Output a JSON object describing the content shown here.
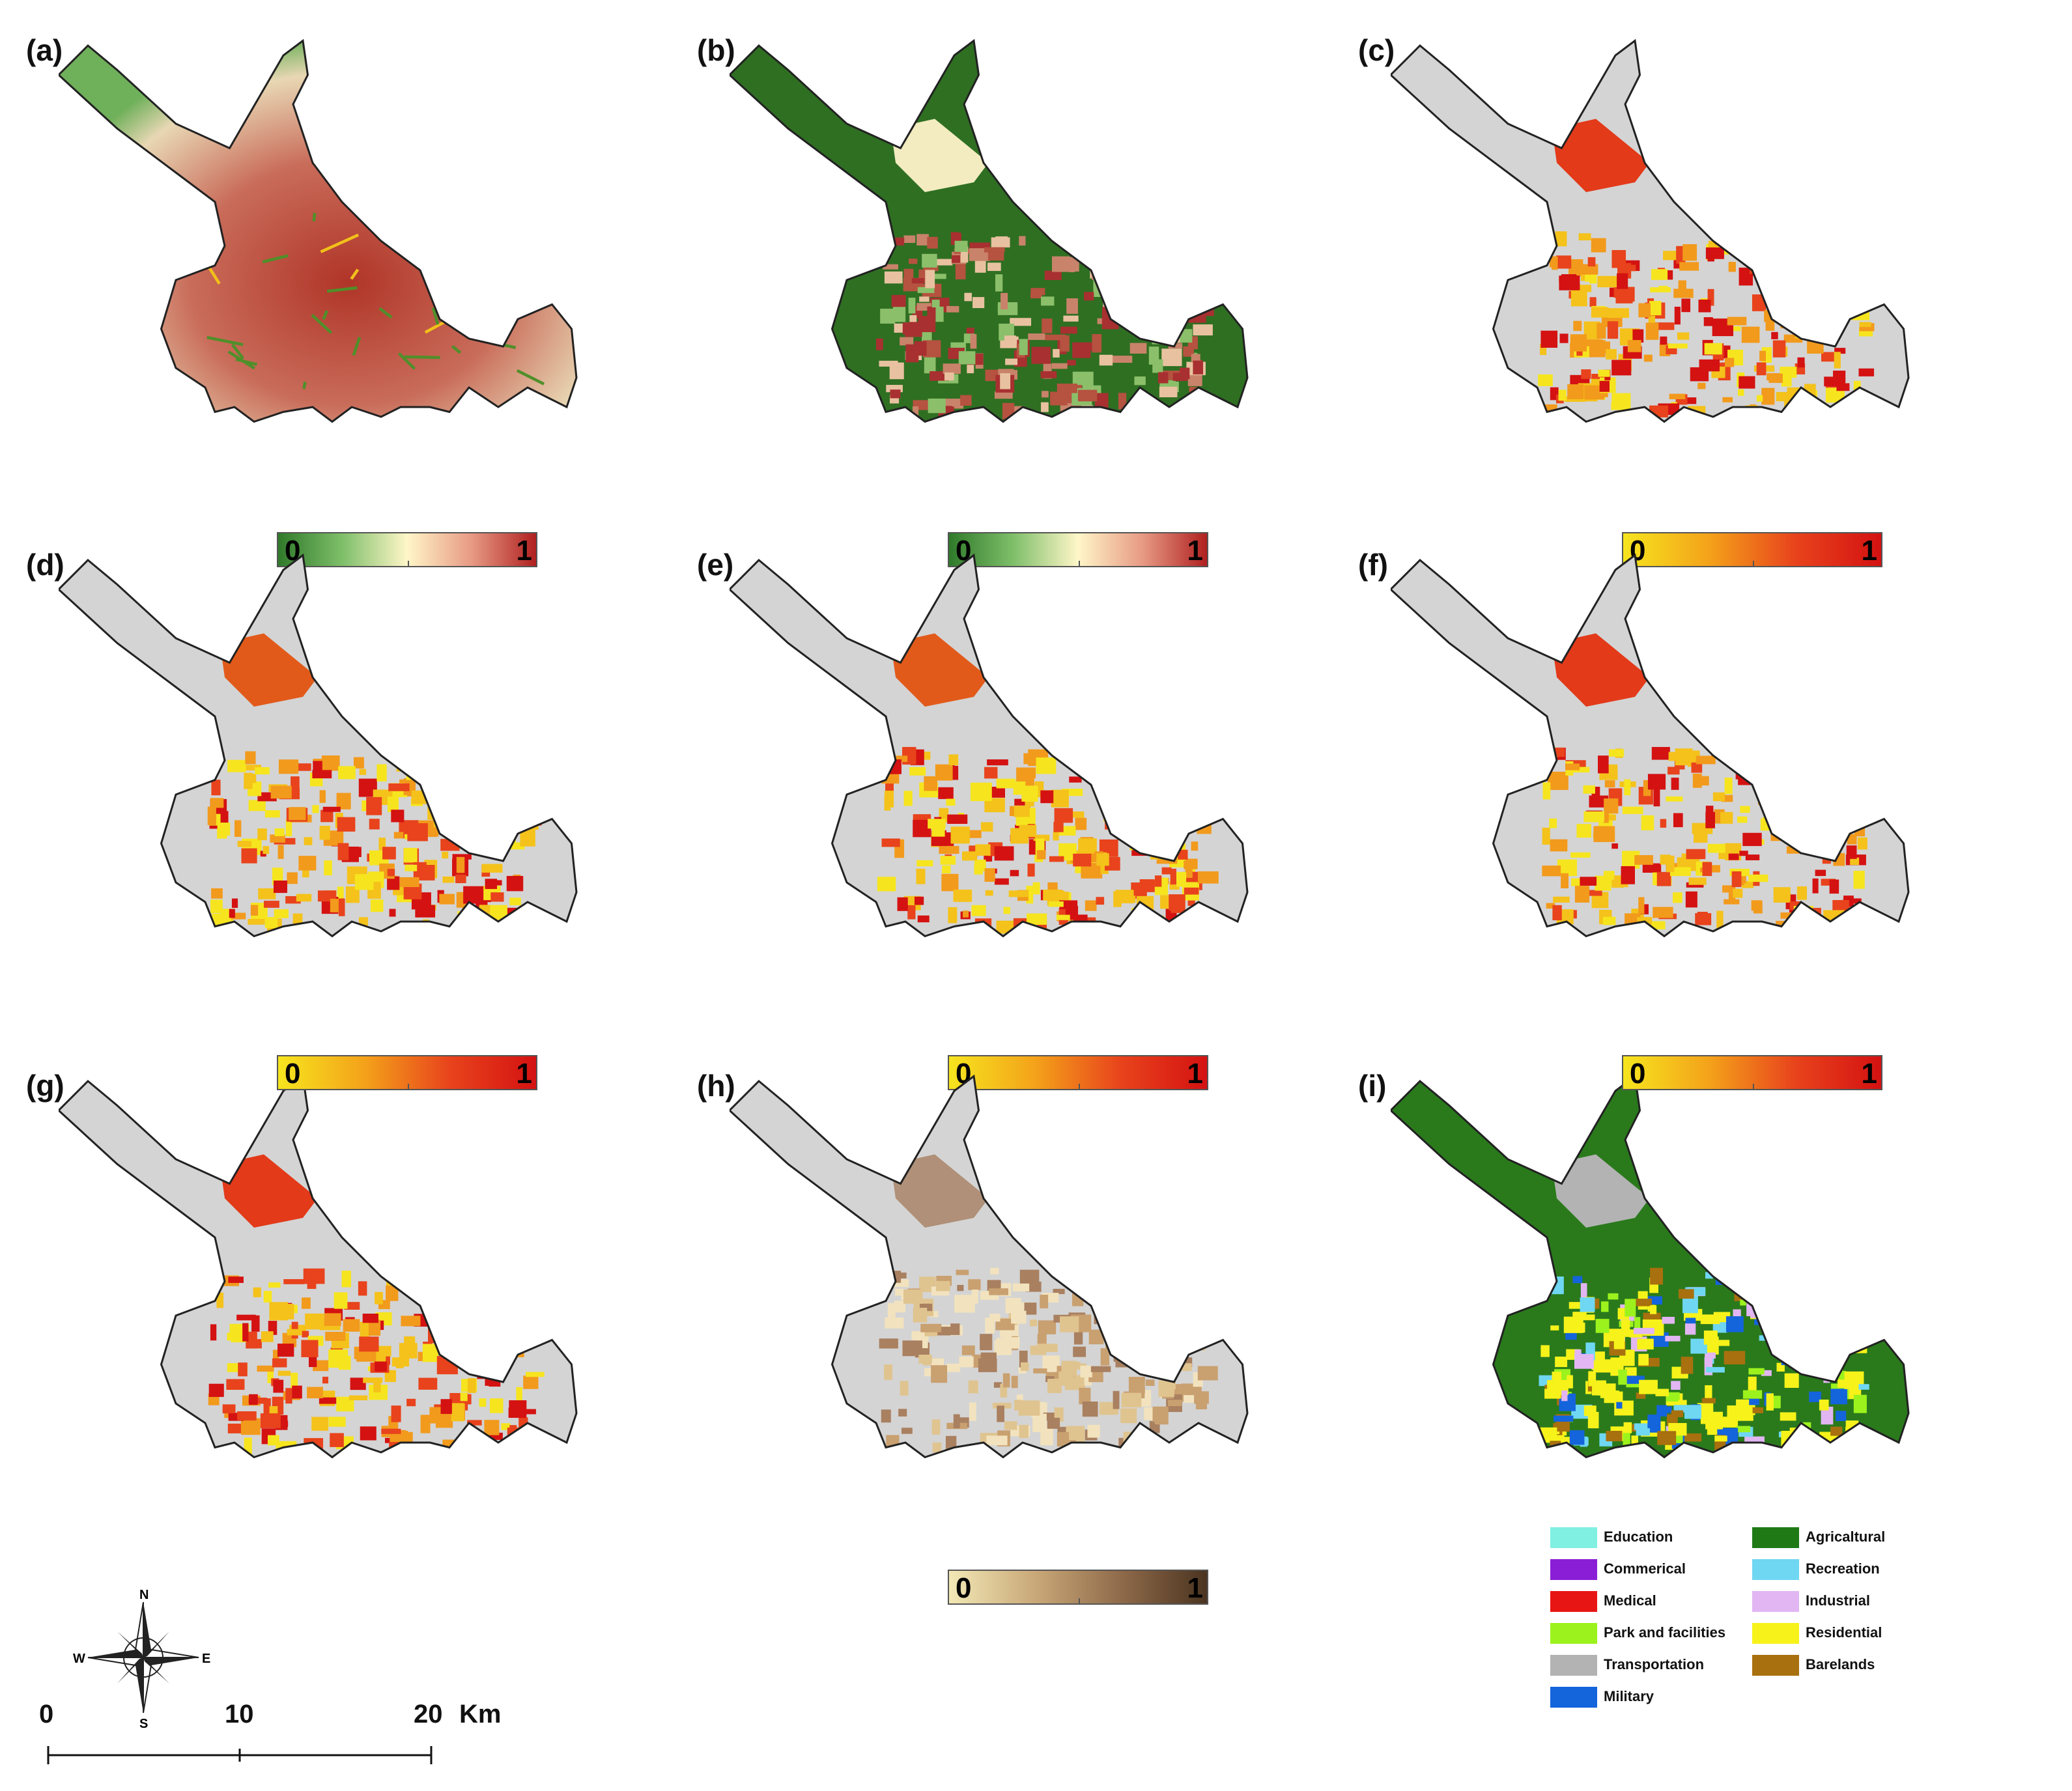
{
  "panels": [
    {
      "label": "(a)",
      "style": "elevation-roads",
      "colorbar": {
        "min": "0",
        "max": "1",
        "ramp": "green-red"
      }
    },
    {
      "label": "(b)",
      "style": "green-red-urban",
      "colorbar": {
        "min": "0",
        "max": "1",
        "ramp": "green-red"
      }
    },
    {
      "label": "(c)",
      "style": "yellow-red",
      "colorbar": {
        "min": "0",
        "max": "1",
        "ramp": "yellow-red"
      }
    },
    {
      "label": "(d)",
      "style": "yellow-red-orange"
    },
    {
      "label": "(e)",
      "style": "yellow-red-orange",
      "colorbar": {
        "min": "0",
        "max": "1",
        "ramp": "yellow-red"
      }
    },
    {
      "label": "(f)",
      "style": "yellow-red-dense"
    },
    {
      "label": "(g)",
      "style": "yellow-red",
      "colorbar": {
        "min": "0",
        "max": "1",
        "ramp": "yellow-red"
      }
    },
    {
      "label": "(h)",
      "style": "brown",
      "colorbar": {
        "min": "0",
        "max": "1",
        "ramp": "brown"
      }
    },
    {
      "label": "(i)",
      "style": "landuse",
      "colorbar": {
        "min": "0",
        "max": "1",
        "ramp": "yellow-red"
      }
    }
  ],
  "ramps": {
    "green-red": [
      "#2f7a2a",
      "#7fbf6a",
      "#fff6c8",
      "#e79a84",
      "#b02020"
    ],
    "yellow-red": [
      "#f6e51e",
      "#f4a21a",
      "#e8431c",
      "#d41212"
    ],
    "brown": [
      "#f2e8b6",
      "#c9a878",
      "#8f6a4a",
      "#4b3420"
    ]
  },
  "legend": {
    "items": [
      {
        "label": "Education",
        "color": "#7ff0e2"
      },
      {
        "label": "Commerical",
        "color": "#8a1ed6"
      },
      {
        "label": "Medical",
        "color": "#e81515"
      },
      {
        "label": "Park and facilities",
        "color": "#9cf21c"
      },
      {
        "label": "Transportation",
        "color": "#b3b3b3"
      },
      {
        "label": "Military",
        "color": "#1464dc"
      },
      {
        "label": "Agricaltural",
        "color": "#1f7a16"
      },
      {
        "label": "Recreation",
        "color": "#6fd7f2"
      },
      {
        "label": "Industrial",
        "color": "#e1b6f2"
      },
      {
        "label": "Residential",
        "color": "#f7f21a"
      },
      {
        "label": "Barelands",
        "color": "#a8700e"
      }
    ]
  },
  "compass": {
    "n": "N",
    "s": "S",
    "e": "E",
    "w": "W"
  },
  "scalebar": {
    "labels": [
      "0",
      "10",
      "20"
    ],
    "unit": "Km"
  }
}
